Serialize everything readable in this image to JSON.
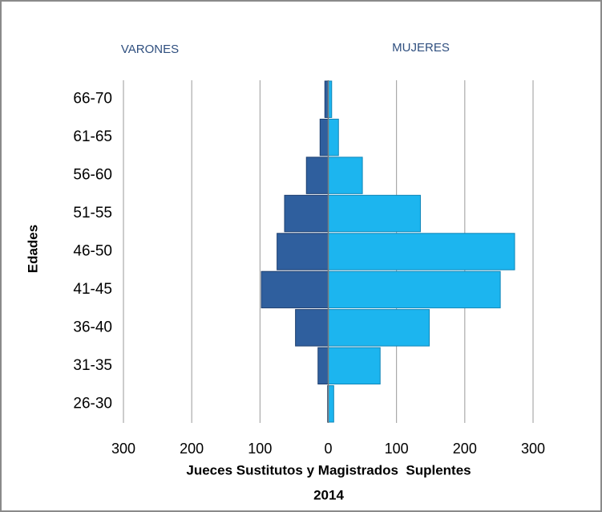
{
  "chart_data": {
    "type": "pyramid",
    "left_label": "VARONES",
    "right_label": "MUJERES",
    "y_label": "Edades",
    "x_label": "Jueces Sustitutos y Magistrados  Suplentes",
    "x_label_year": "2014",
    "categories": [
      "26-30",
      "31-35",
      "36-40",
      "41-45",
      "46-50",
      "51-55",
      "56-60",
      "61-65",
      "66-70"
    ],
    "series": [
      {
        "color": "#2f5f9e",
        "values": [
          -1,
          -15,
          -48,
          -98,
          -75,
          -64,
          -32,
          -12,
          -5
        ]
      },
      {
        "color": "#1cb5ef",
        "values": [
          8,
          76,
          148,
          252,
          273,
          135,
          50,
          15,
          5
        ]
      }
    ],
    "xlim": [
      -300,
      300
    ],
    "xticks": [
      {
        "value": -300,
        "label": "300"
      },
      {
        "value": -200,
        "label": "200"
      },
      {
        "value": -100,
        "label": "100"
      },
      0,
      100,
      200,
      300
    ],
    "grid": true
  }
}
